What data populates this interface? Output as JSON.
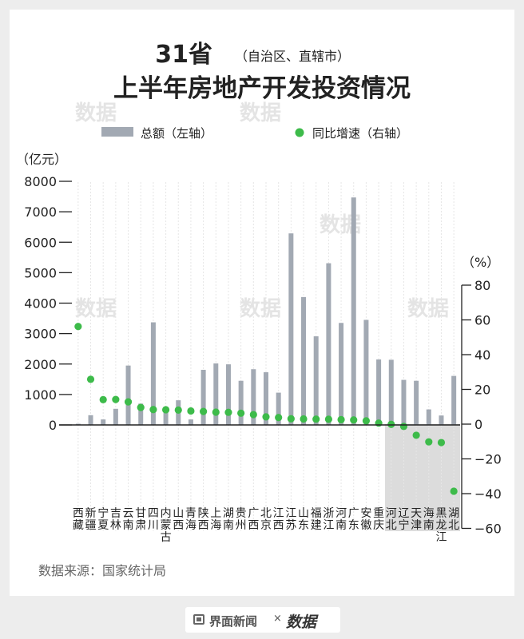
{
  "title": {
    "main": "31省",
    "note": "（自治区、直辖市）",
    "sub": "上半年房地产开发投资情况"
  },
  "watermark": "数据",
  "source": "数据来源：国家统计局",
  "footer": {
    "publisher": "界面新闻",
    "separator": "×",
    "brand": "数据"
  },
  "colors": {
    "bar": "#a2a9b3",
    "dot": "#3dbb4a",
    "shade": "#dcdcdc",
    "background": "#ffffff",
    "axis_text": "#222222"
  },
  "chart_data": {
    "type": "bar",
    "legend": {
      "bar_label": "总额（左轴）",
      "dot_label": "同比增速（右轴）",
      "placement": "top"
    },
    "left_axis": {
      "unit": "（亿元）",
      "ylim": [
        0,
        8000
      ],
      "ticks": [
        "0",
        "1000",
        "2000",
        "3000",
        "4000",
        "5000",
        "6000",
        "7000",
        "8000"
      ]
    },
    "right_axis": {
      "unit": "（%）",
      "ylim": [
        -60,
        80
      ],
      "ticks": [
        "80",
        "60",
        "40",
        "20",
        "0",
        "−20",
        "−40",
        "−60"
      ]
    },
    "categories": [
      "西藏",
      "新疆",
      "宁夏",
      "吉林",
      "云南",
      "甘肃",
      "四川",
      "内蒙古",
      "山西",
      "青海",
      "陕西",
      "上海",
      "湖南",
      "贵州",
      "广西",
      "北京",
      "江西",
      "江苏",
      "山东",
      "福建",
      "浙江",
      "河南",
      "广东",
      "安徽",
      "重庆",
      "河北",
      "辽宁",
      "天津",
      "海南",
      "黑龙江",
      "湖北"
    ],
    "series": [
      {
        "name": "总额（左轴）",
        "axis": "left",
        "values": [
          40,
          320,
          180,
          530,
          1950,
          700,
          3370,
          540,
          810,
          180,
          1810,
          2020,
          1990,
          1450,
          1830,
          1730,
          1060,
          6290,
          4200,
          2910,
          5310,
          3350,
          7470,
          3450,
          2150,
          2140,
          1480,
          1450,
          510,
          310,
          1610
        ]
      },
      {
        "name": "同比增速（右轴）",
        "axis": "right",
        "values": [
          56.2,
          25.8,
          14.1,
          14.2,
          12.8,
          9.6,
          8.4,
          8.3,
          8.1,
          7.6,
          7.3,
          6.9,
          6.8,
          6.3,
          5.5,
          4.2,
          3.8,
          3.1,
          3.0,
          2.9,
          2.8,
          2.6,
          2.4,
          1.9,
          0.6,
          -0.1,
          -1.3,
          -6.4,
          -10.2,
          -10.6,
          -38.6
        ]
      }
    ],
    "shaded_categories": [
      "河北",
      "辽宁",
      "天津",
      "海南",
      "黑龙江",
      "湖北"
    ]
  }
}
